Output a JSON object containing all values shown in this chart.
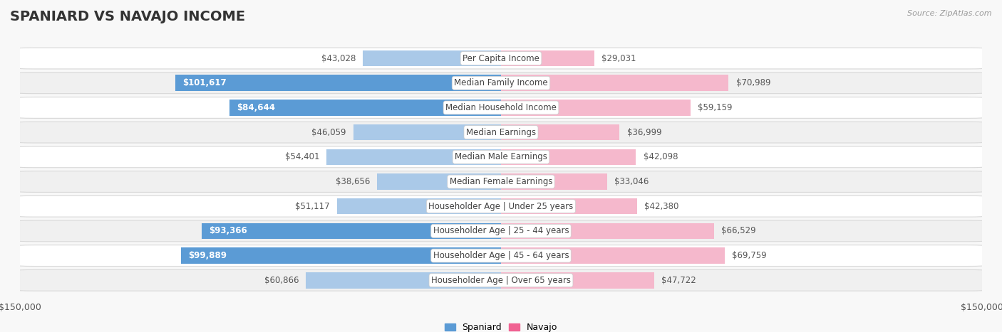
{
  "title": "SPANIARD VS NAVAJO INCOME",
  "source": "Source: ZipAtlas.com",
  "categories": [
    "Per Capita Income",
    "Median Family Income",
    "Median Household Income",
    "Median Earnings",
    "Median Male Earnings",
    "Median Female Earnings",
    "Householder Age | Under 25 years",
    "Householder Age | 25 - 44 years",
    "Householder Age | 45 - 64 years",
    "Householder Age | Over 65 years"
  ],
  "spaniard_values": [
    43028,
    101617,
    84644,
    46059,
    54401,
    38656,
    51117,
    93366,
    99889,
    60866
  ],
  "navajo_values": [
    29031,
    70989,
    59159,
    36999,
    42098,
    33046,
    42380,
    66529,
    69759,
    47722
  ],
  "spaniard_labels": [
    "$43,028",
    "$101,617",
    "$84,644",
    "$46,059",
    "$54,401",
    "$38,656",
    "$51,117",
    "$93,366",
    "$99,889",
    "$60,866"
  ],
  "navajo_labels": [
    "$29,031",
    "$70,989",
    "$59,159",
    "$36,999",
    "$42,098",
    "$33,046",
    "$42,380",
    "$66,529",
    "$69,759",
    "$47,722"
  ],
  "max_val": 150000,
  "spaniard_color_light": "#aac9e8",
  "spaniard_color_dark": "#5b9bd5",
  "navajo_color_light": "#f5b8cc",
  "navajo_color_dark": "#f06292",
  "row_bg_color": "#f0f0f0",
  "row_border_color": "#d8d8d8",
  "page_bg_color": "#f8f8f8",
  "label_dark_color": "#555555",
  "label_white_color": "#ffffff",
  "category_color": "#444444",
  "title_color": "#333333",
  "source_color": "#999999",
  "bar_height": 0.65,
  "legend_spaniard": "Spaniard",
  "legend_navajo": "Navajo",
  "title_fontsize": 14,
  "label_fontsize": 8.5,
  "category_fontsize": 8.5,
  "axis_fontsize": 9,
  "inside_threshold": 0.5
}
